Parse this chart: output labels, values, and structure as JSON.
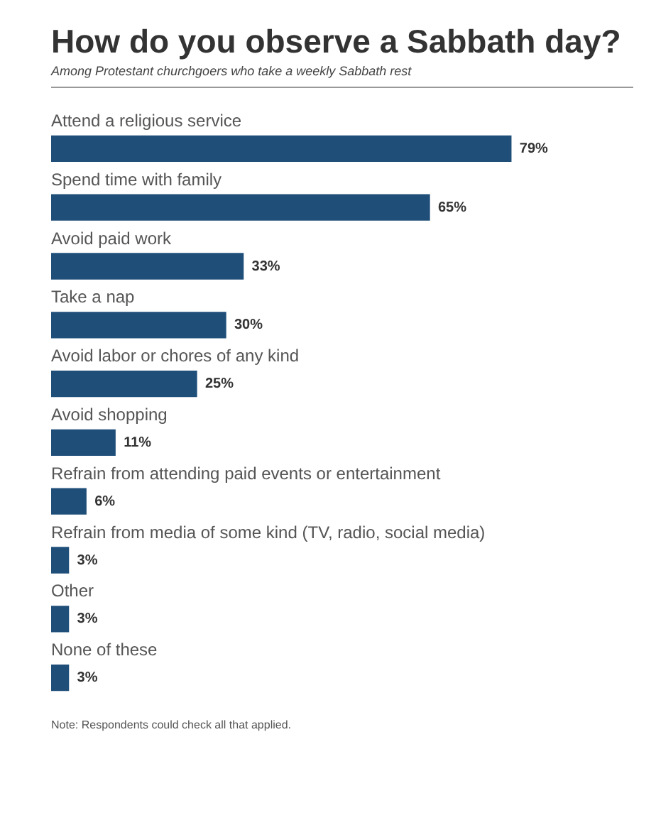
{
  "chart_data": {
    "type": "bar",
    "orientation": "horizontal",
    "title": "How do you observe a Sabbath day?",
    "subtitle": "Among Protestant churchgoers who take a weekly Sabbath rest",
    "categories": [
      "Attend a religious service",
      "Spend time with family",
      "Avoid paid work",
      "Take a nap",
      "Avoid labor or chores of any kind",
      "Avoid shopping",
      "Refrain from attending paid events or entertainment",
      "Refrain from media of some kind (TV, radio, social media)",
      "Other",
      "None of these"
    ],
    "values": [
      79,
      65,
      33,
      30,
      25,
      11,
      6,
      3,
      3,
      3
    ],
    "value_labels": [
      "79%",
      "65%",
      "33%",
      "30%",
      "25%",
      "11%",
      "6%",
      "3%",
      "3%",
      "3%"
    ],
    "color": "#1f4e79",
    "annotations": [
      "Note: Respondents could check all that applied."
    ]
  }
}
